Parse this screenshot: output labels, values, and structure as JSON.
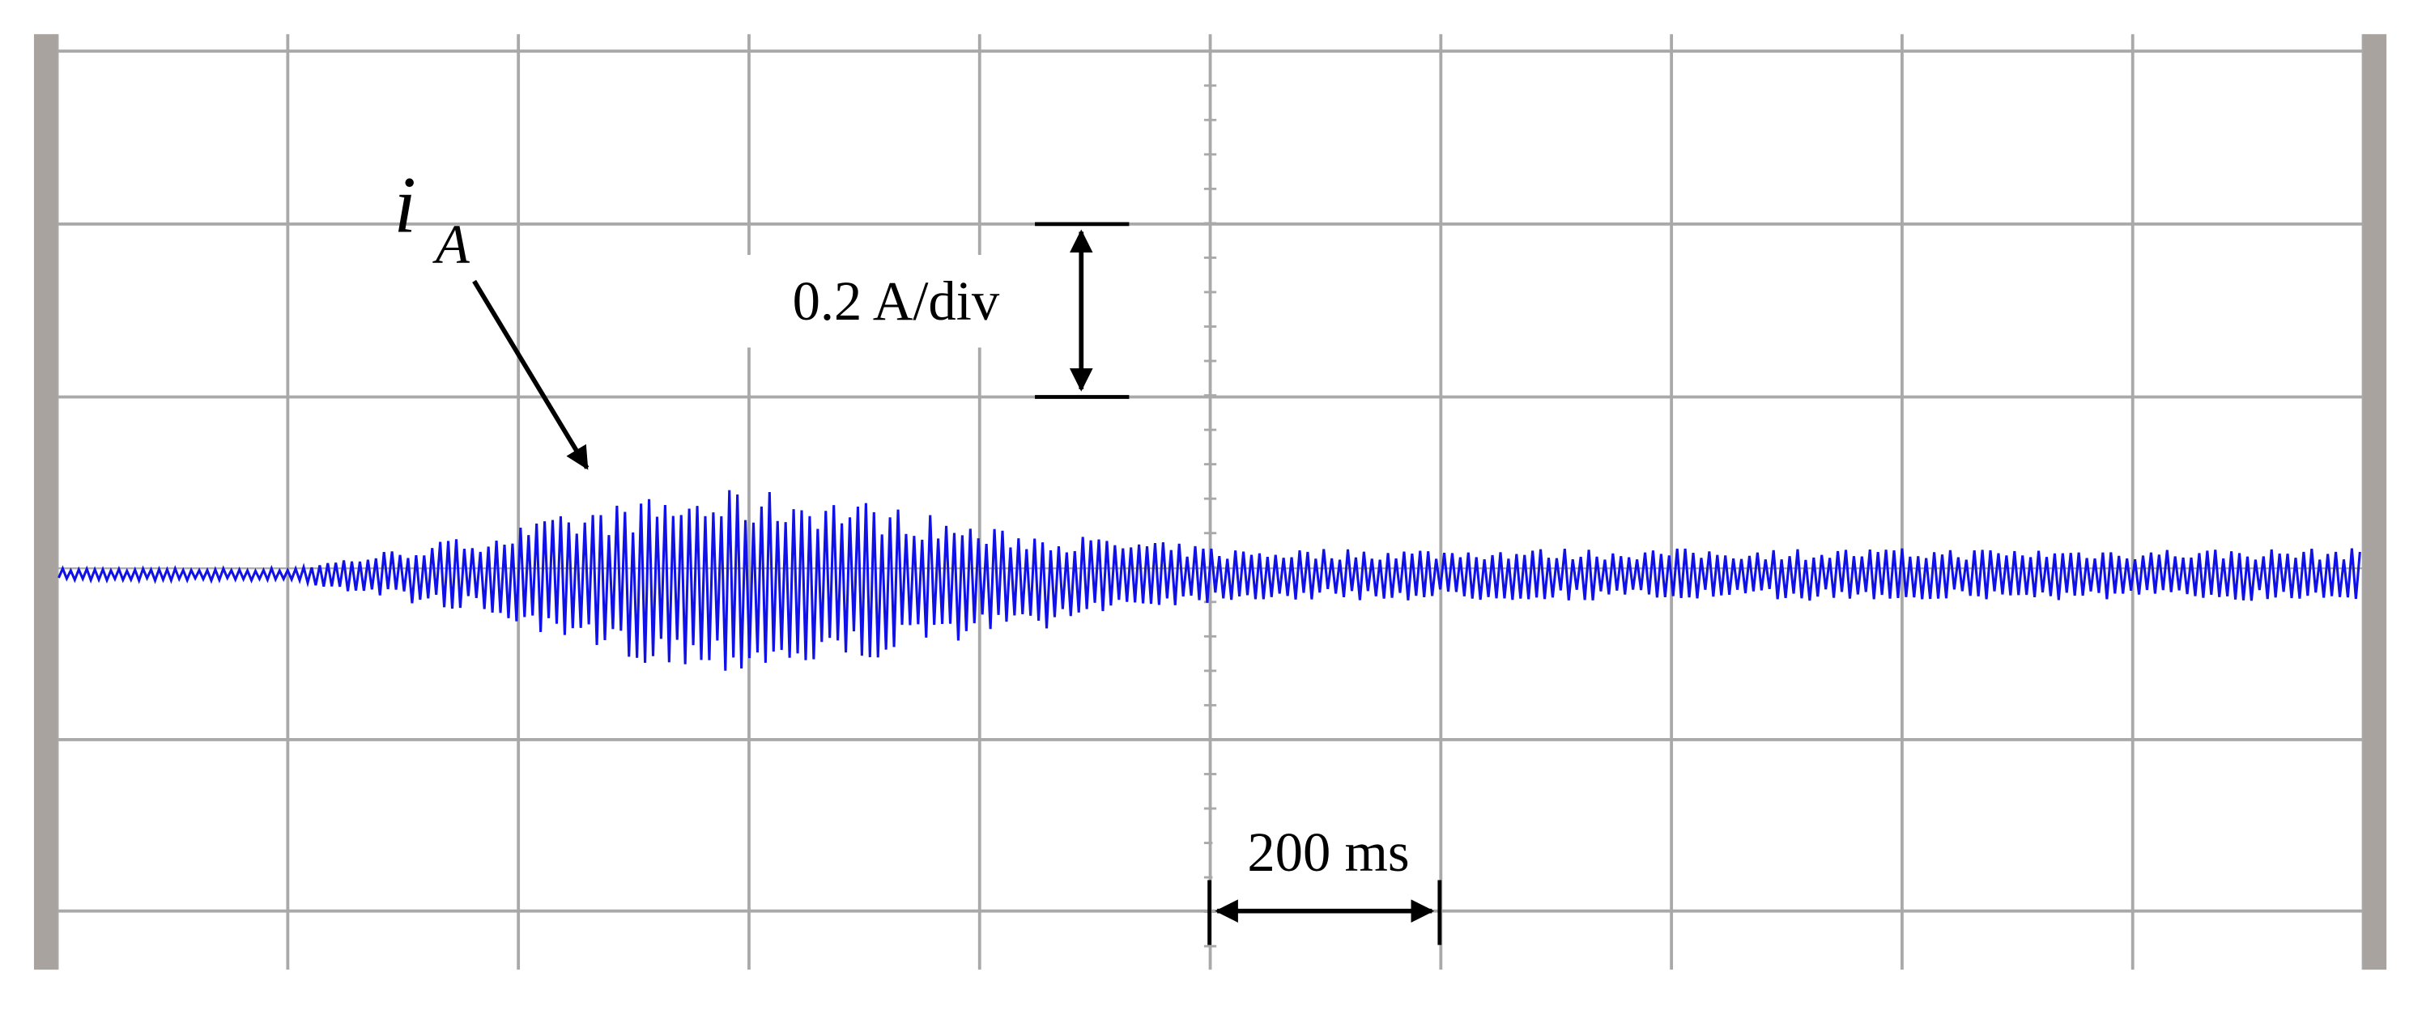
{
  "trace_label": {
    "symbol": "i",
    "subscript": "A"
  },
  "vertical_scale": "0.2 A/div",
  "horizontal_scale": "200 ms"
}
